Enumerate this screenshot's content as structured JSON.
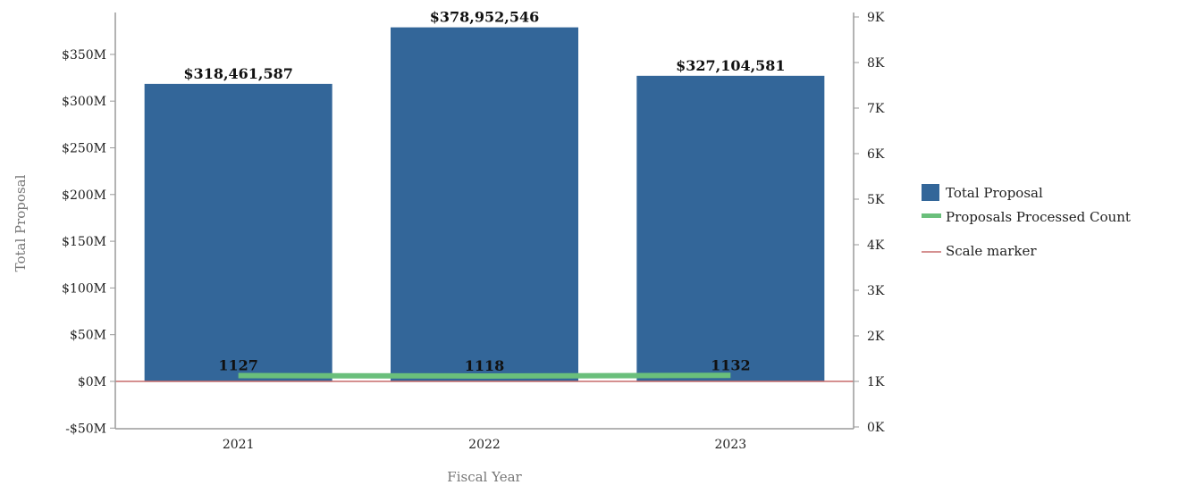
{
  "chart_data": {
    "type": "bar",
    "categories": [
      "2021",
      "2022",
      "2023"
    ],
    "series": [
      {
        "name": "Total Proposal",
        "type": "bar",
        "axis": "left",
        "values": [
          318461587,
          378952546,
          327104581
        ],
        "labels": [
          "$318,461,587",
          "$378,952,546",
          "$327,104,581"
        ],
        "color": "#336699"
      },
      {
        "name": "Proposals Processed Count",
        "type": "line",
        "axis": "right",
        "values": [
          1127,
          1118,
          1132
        ],
        "labels": [
          "1127",
          "1118",
          "1132"
        ],
        "color": "#6abf7b"
      },
      {
        "name": "Scale marker",
        "type": "reference-line",
        "axis": "left",
        "value": 0,
        "color": "#c76b6b"
      }
    ],
    "xlabel": "Fiscal Year",
    "ylabel": "Total Proposal",
    "y_left": {
      "range": [
        -50000000,
        380000000
      ],
      "ticks": [
        -50000000,
        0,
        50000000,
        100000000,
        150000000,
        200000000,
        250000000,
        300000000,
        350000000
      ],
      "tick_labels": [
        "-$50M",
        "$0M",
        "$50M",
        "$100M",
        "$150M",
        "$200M",
        "$250M",
        "$300M",
        "$350M"
      ]
    },
    "y_right": {
      "range": [
        0,
        9000
      ],
      "ticks": [
        0,
        1000,
        2000,
        3000,
        4000,
        5000,
        6000,
        7000,
        8000,
        9000
      ],
      "tick_labels": [
        "0K",
        "1K",
        "2K",
        "3K",
        "4K",
        "5K",
        "6K",
        "7K",
        "8K",
        "9K"
      ]
    },
    "grid": false,
    "legend_position": "right"
  }
}
